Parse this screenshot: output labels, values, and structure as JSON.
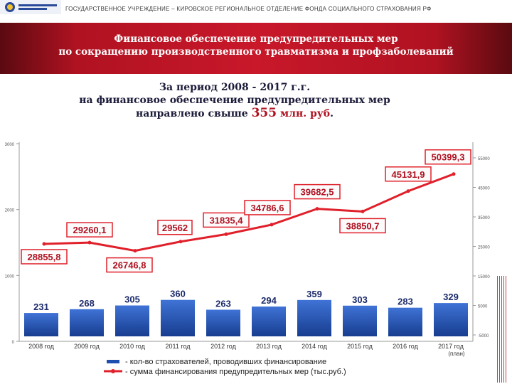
{
  "header": {
    "organization": "ГОСУДАРСТВЕННОЕ УЧРЕЖДЕНИЕ – КИРОВСКОЕ РЕГИОНАЛЬНОЕ ОТДЕЛЕНИЕ ФОНДА СОЦИАЛЬНОГО СТРАХОВАНИЯ РФ",
    "logo_icon": "fss-emblem-icon"
  },
  "banner": {
    "line1": "Финансовое обеспечение предупредительных мер",
    "line2": "по сокращению производственного травматизма и профзаболеваний"
  },
  "summary": {
    "line1": "За период 2008 - 2017 г.г.",
    "line2": "на финансовое обеспечение предупредительных мер",
    "line3_prefix": "направлено свыше",
    "amount": "355",
    "unit": "млн. руб",
    "suffix": "."
  },
  "chart_data": {
    "type": "bar",
    "categories": [
      "2008 год",
      "2009 год",
      "2010 год",
      "2011 год",
      "2012 год",
      "2013 год",
      "2014 год",
      "2015 год",
      "2016 год",
      "2017 год"
    ],
    "category_notes": [
      "",
      "",
      "",
      "",
      "",
      "",
      "",
      "",
      "",
      "(план)"
    ],
    "series": [
      {
        "name": "- кол-во страхователей, проводивших финансирование",
        "type": "bar",
        "axis": "left",
        "values": [
          231,
          268,
          305,
          360,
          263,
          294,
          359,
          303,
          283,
          329
        ],
        "labels": [
          "231",
          "268",
          "305",
          "360",
          "263",
          "294",
          "359",
          "303",
          "283",
          "329"
        ]
      },
      {
        "name": "- сумма финансирования предупредительных мер (тыс.руб.)",
        "type": "line",
        "axis": "right",
        "values": [
          28855.8,
          29260.1,
          26746.8,
          29562,
          31835.4,
          34786.6,
          39682.5,
          38850.7,
          45131.9,
          50399.3
        ],
        "labels": [
          "28855,8",
          "29260,1",
          "26746,8",
          "29562",
          "31835,4",
          "34786,6",
          "39682,5",
          "38850,7",
          "45131,9",
          "50399,3"
        ]
      }
    ],
    "left_axis": {
      "ylim": [
        0,
        3000
      ],
      "ticks": [
        "3000",
        "2000",
        "1000",
        "0"
      ]
    },
    "right_axis": {
      "ticks": [
        "55000",
        "45000",
        "35000",
        "25000",
        "15000",
        "5000",
        "-5000"
      ]
    },
    "legend_position": "bottom",
    "colors": {
      "bar": "#1f4fae",
      "line": "#e0202a",
      "label_border": "#e0202a",
      "bar_label": "#1c2b6b"
    }
  }
}
